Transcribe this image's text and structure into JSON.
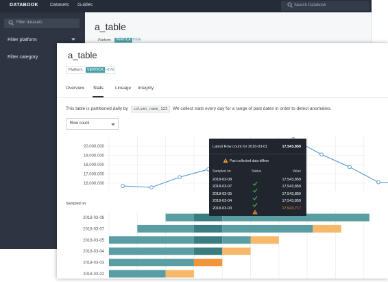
{
  "app": {
    "brand": "DATABOOK",
    "nav": [
      "Datasets",
      "Guides"
    ],
    "search_placeholder": "Search Databook"
  },
  "sidebar": {
    "filter_placeholder": "Filter datasets",
    "filters": [
      "Filter platform",
      "Filter category"
    ]
  },
  "background_page": {
    "title": "a_table",
    "platform_label": "Platform",
    "platforms": [
      "VERTICA",
      "HIVE"
    ]
  },
  "page": {
    "title": "a_table",
    "platform_label": "Platform",
    "platforms": [
      "VERTICA",
      "HIVE"
    ],
    "tabs": [
      "Overview",
      "Stats",
      "Lineage",
      "Integrity"
    ],
    "active_tab": "Stats",
    "description_prefix": "This table is partitioned daily by",
    "partition_column": "column_name_123",
    "description_suffix": "We collect stats every day for a range of past dates in order to detect anomalies.",
    "metric_selected": "Row count",
    "sampled_on_label": "Sampled on"
  },
  "tooltip": {
    "title": "Latest Row count for 2018-03-01",
    "value": "17,543,859",
    "warning": "Past collected data differs",
    "columns": [
      "Sampled on",
      "Status",
      "Value"
    ],
    "rows": [
      {
        "date": "2018-03-08",
        "status": "ok",
        "value": "17,543,859"
      },
      {
        "date": "2018-03-07",
        "status": "ok",
        "value": "17,543,859"
      },
      {
        "date": "2018-03-05",
        "status": "ok",
        "value": "17,543,859"
      },
      {
        "date": "2018-03-04",
        "status": "ok",
        "value": "17,543,859"
      },
      {
        "date": "2018-03-03",
        "status": "warning",
        "value": "17,543,717"
      }
    ]
  },
  "colors": {
    "line": "#5c9fd6",
    "bar_teal": "#5a9ea3",
    "bar_dark": "#3a7d80",
    "bar_orange": "#f0953a",
    "bar_light_orange": "#f6b86b",
    "ok": "#4caf50",
    "warning": "#f0953a"
  },
  "chart_data": [
    {
      "type": "line",
      "ylabel": "",
      "yticks": [
        "20,000,000",
        "19,000,000",
        "18,000,000",
        "17,000,000",
        "16,000,000"
      ],
      "ylim": [
        15500000,
        20500000
      ],
      "x": [
        1,
        2,
        3,
        4,
        5,
        6,
        7,
        8,
        9,
        10,
        11
      ],
      "values": [
        15700000,
        15550000,
        16650000,
        17500000,
        18600000,
        19400000,
        20750000,
        19100000,
        17750000,
        16100000,
        15950000
      ]
    },
    {
      "type": "bar",
      "ylabel": "Sampled on",
      "categories": [
        "2018-03-08",
        "2018-03-07",
        "2018-03-05",
        "2018-03-04",
        "2018-03-03",
        "2018-03-02"
      ],
      "segments": [
        [
          {
            "start": 2,
            "end": 3,
            "c": "bar_teal"
          },
          {
            "start": 3,
            "end": 4,
            "c": "bar_dark"
          },
          {
            "start": 4,
            "end": 9.2,
            "c": "bar_teal"
          }
        ],
        [
          {
            "start": 1,
            "end": 3,
            "c": "bar_teal"
          },
          {
            "start": 3,
            "end": 4,
            "c": "bar_dark"
          },
          {
            "start": 4,
            "end": 7.2,
            "c": "bar_teal"
          },
          {
            "start": 7.2,
            "end": 8.2,
            "c": "bar_light_orange"
          }
        ],
        [
          {
            "start": 0,
            "end": 3,
            "c": "bar_teal"
          },
          {
            "start": 3,
            "end": 4,
            "c": "bar_dark"
          },
          {
            "start": 4,
            "end": 5,
            "c": "bar_teal"
          },
          {
            "start": 5,
            "end": 6,
            "c": "bar_light_orange"
          }
        ],
        [
          {
            "start": 0,
            "end": 3,
            "c": "bar_teal"
          },
          {
            "start": 3,
            "end": 4,
            "c": "bar_dark"
          },
          {
            "start": 4,
            "end": 5,
            "c": "bar_light_orange"
          }
        ],
        [
          {
            "start": 0,
            "end": 3,
            "c": "bar_teal"
          },
          {
            "start": 3,
            "end": 4,
            "c": "bar_orange"
          }
        ],
        [
          {
            "start": 0,
            "end": 2,
            "c": "bar_teal"
          },
          {
            "start": 2,
            "end": 3,
            "c": "bar_light_orange"
          }
        ]
      ],
      "xlim": [
        0,
        9.2
      ]
    }
  ]
}
